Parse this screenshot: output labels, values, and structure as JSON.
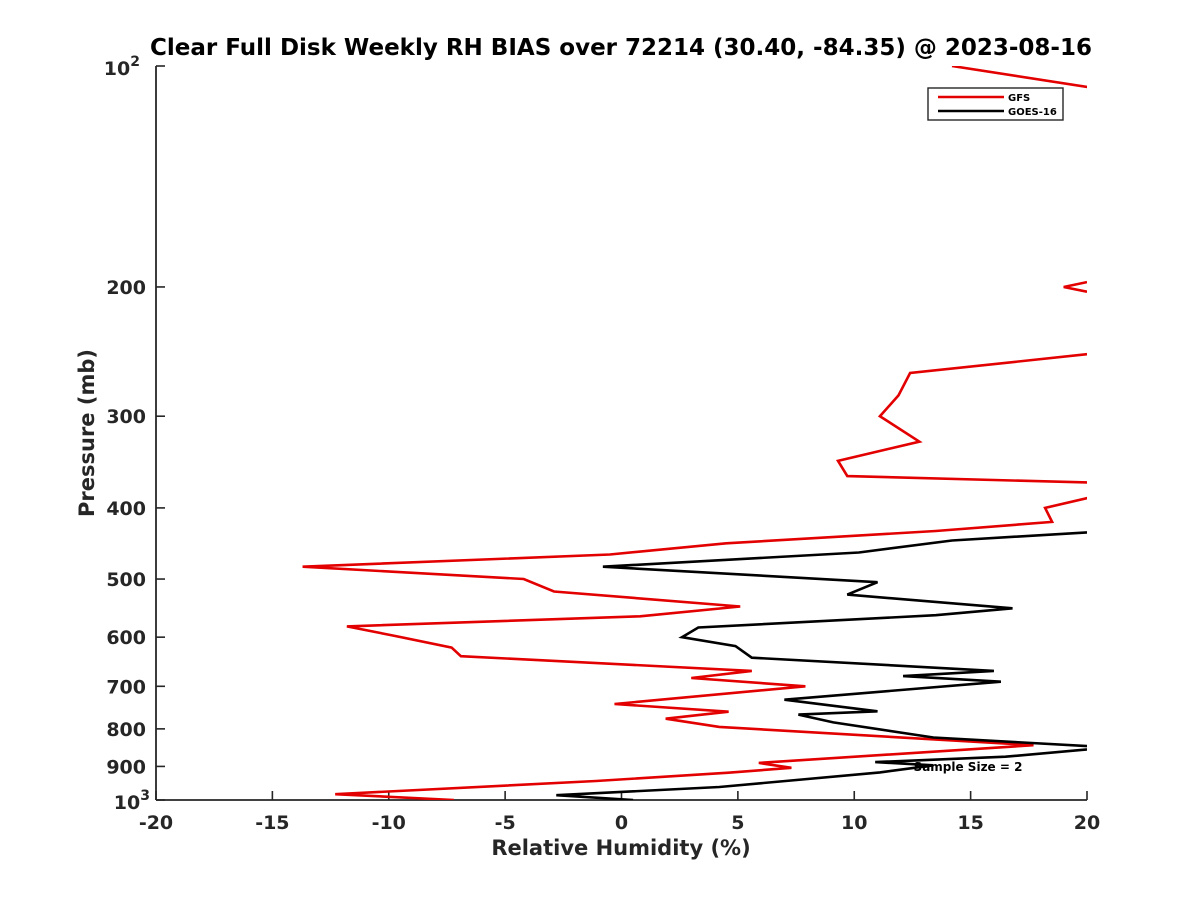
{
  "chart_data": {
    "type": "line",
    "title": "Clear Full Disk Weekly RH BIAS over 72214 (30.40, -84.35) @ 2023-08-16",
    "xlabel": "Relative Humidity (%)",
    "ylabel": "Pressure (mb)",
    "xlim": [
      -20,
      20
    ],
    "ylim": [
      100,
      1000
    ],
    "yscale": "log",
    "yreversed": true,
    "x_ticks": [
      "-20",
      "-15",
      "-10",
      "-5",
      "0",
      "5",
      "10",
      "15",
      "20"
    ],
    "y_ticks": [
      "200",
      "300",
      "400",
      "500",
      "600",
      "700",
      "800",
      "900"
    ],
    "y_tick_top": {
      "base": "10",
      "exp": "2"
    },
    "y_tick_bottom": {
      "base": "10",
      "exp": "3"
    },
    "legend_position": "top-right",
    "annotation": "Sample Size = 2",
    "series": [
      {
        "name": "GFS",
        "color": "#e30000",
        "segments": [
          [
            [
              14.2,
              100
            ],
            [
              21.0,
              108
            ]
          ],
          [
            [
              20.0,
              197
            ],
            [
              19.0,
              200
            ],
            [
              20.0,
              203
            ]
          ],
          [
            [
              20.0,
              247
            ],
            [
              12.4,
              262
            ],
            [
              11.9,
              281
            ],
            [
              11.1,
              300
            ],
            [
              12.8,
              325
            ],
            [
              9.3,
              345
            ],
            [
              9.7,
              362
            ],
            [
              21.0,
              370
            ],
            [
              20.0,
              388
            ],
            [
              18.2,
              400
            ],
            [
              18.5,
              418
            ],
            [
              13.5,
              430
            ],
            [
              4.5,
              447
            ],
            [
              -0.5,
              463
            ],
            [
              -13.7,
              481
            ],
            [
              -4.2,
              500
            ],
            [
              -2.9,
              520
            ],
            [
              5.1,
              545
            ],
            [
              0.8,
              562
            ],
            [
              -11.8,
              580
            ],
            [
              -9.8,
              597
            ],
            [
              -7.3,
              620
            ],
            [
              -6.9,
              637
            ],
            [
              5.6,
              667
            ],
            [
              3.0,
              682
            ],
            [
              7.9,
              700
            ],
            [
              -0.3,
              740
            ],
            [
              4.6,
              758
            ],
            [
              1.9,
              775
            ],
            [
              4.2,
              795
            ],
            [
              17.7,
              842
            ],
            [
              5.9,
              890
            ],
            [
              7.3,
              904
            ],
            [
              4.6,
              918
            ],
            [
              -1.1,
              942
            ],
            [
              -12.3,
              982
            ],
            [
              -7.2,
              1000
            ]
          ]
        ]
      },
      {
        "name": "GOES-16",
        "color": "#000000",
        "segments": [
          [
            [
              20.0,
              432
            ],
            [
              14.2,
              443
            ],
            [
              10.2,
              460
            ],
            [
              -0.8,
              481
            ],
            [
              11.0,
              505
            ],
            [
              9.7,
              525
            ],
            [
              16.8,
              548
            ],
            [
              13.5,
              560
            ],
            [
              3.3,
              582
            ],
            [
              2.6,
              600
            ],
            [
              4.9,
              617
            ],
            [
              5.6,
              640
            ],
            [
              16.0,
              667
            ],
            [
              12.1,
              678
            ],
            [
              16.3,
              690
            ],
            [
              7.0,
              730
            ],
            [
              11.0,
              757
            ],
            [
              7.6,
              765
            ],
            [
              9.1,
              784
            ],
            [
              13.4,
              822
            ],
            [
              21.0,
              848
            ],
            [
              16.5,
              873
            ],
            [
              10.9,
              888
            ],
            [
              13.4,
              897
            ],
            [
              11.1,
              917
            ],
            [
              4.2,
              960
            ],
            [
              -2.8,
              985
            ],
            [
              0.5,
              1000
            ]
          ]
        ]
      }
    ]
  }
}
